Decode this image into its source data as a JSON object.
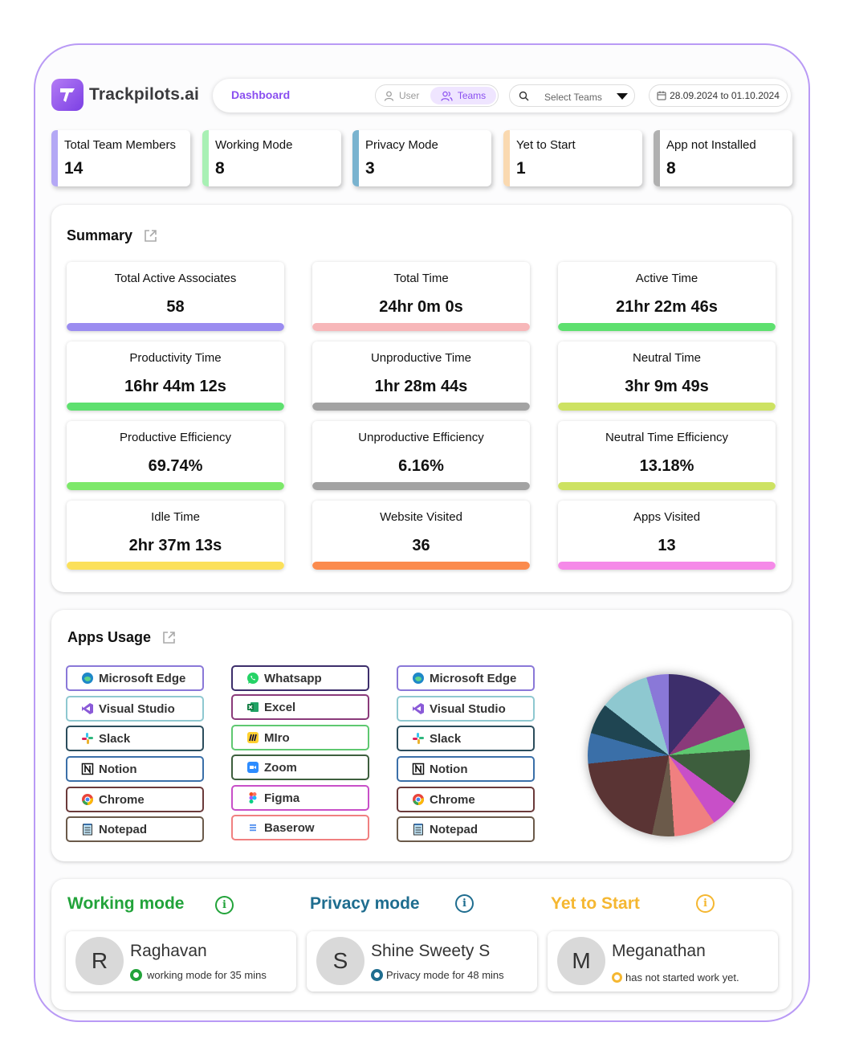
{
  "brand": {
    "name": "Trackpilots.ai",
    "accent": "#8a4ff0"
  },
  "header": {
    "title": "Dashboard",
    "toggle": {
      "user": "User",
      "teams": "Teams"
    },
    "team_select": {
      "placeholder": "Select Teams"
    },
    "date_range": "28.09.2024 to 01.10.2024"
  },
  "status_cards": [
    {
      "label": "Total Team Members",
      "value": "14",
      "color": "#b4a8f5"
    },
    {
      "label": "Working Mode",
      "value": "8",
      "color": "#a8f0b4"
    },
    {
      "label": "Privacy Mode",
      "value": "3",
      "color": "#7ab3cf"
    },
    {
      "label": "Yet to Start",
      "value": "1",
      "color": "#fad9b0"
    },
    {
      "label": "App not Installed",
      "value": "8",
      "color": "#b0b0b0"
    }
  ],
  "summary": {
    "title": "Summary",
    "metrics": [
      {
        "label": "Total Active Associates",
        "value": "58",
        "color": "#9b8cf0"
      },
      {
        "label": "Total Time",
        "value": "24hr 0m 0s",
        "color": "#f7b7b9"
      },
      {
        "label": "Active Time",
        "value": "21hr 22m 46s",
        "color": "#5ee06f"
      },
      {
        "label": "Productivity Time",
        "value": "16hr 44m 12s",
        "color": "#5ee06f"
      },
      {
        "label": "Unproductive Time",
        "value": "1hr 28m 44s",
        "color": "#a3a3a3"
      },
      {
        "label": "Neutral Time",
        "value": "3hr 9m 49s",
        "color": "#cde262"
      },
      {
        "label": "Productive Efficiency",
        "value": "69.74%",
        "color": "#7de86a"
      },
      {
        "label": "Unproductive Efficiency",
        "value": "6.16%",
        "color": "#a3a3a3"
      },
      {
        "label": "Neutral Time Efficiency",
        "value": "13.18%",
        "color": "#cde262"
      },
      {
        "label": "Idle Time",
        "value": "2hr 37m 13s",
        "color": "#fbe05a"
      },
      {
        "label": "Website Visited",
        "value": "36",
        "color": "#fb8b4d"
      },
      {
        "label": "Apps Visited",
        "value": "13",
        "color": "#f58ae8"
      }
    ]
  },
  "apps_usage": {
    "title": "Apps Usage",
    "columns": [
      [
        {
          "name": "Microsoft Edge",
          "icon": "edge-icon",
          "border": "#8a78d8"
        },
        {
          "name": "Visual Studio",
          "icon": "visual-studio-icon",
          "border": "#8ec8d0"
        },
        {
          "name": "Slack",
          "icon": "slack-icon",
          "border": "#2b4d5c"
        },
        {
          "name": "Notion",
          "icon": "notion-icon",
          "border": "#3a6fa8"
        },
        {
          "name": "Chrome",
          "icon": "chrome-icon",
          "border": "#6b3a3a"
        },
        {
          "name": "Notepad",
          "icon": "notepad-icon",
          "border": "#6b5a4a"
        }
      ],
      [
        {
          "name": "Whatsapp",
          "icon": "whatsapp-icon",
          "border": "#3d2e6b"
        },
        {
          "name": "Excel",
          "icon": "excel-icon",
          "border": "#8a3a7a"
        },
        {
          "name": "MIro",
          "icon": "miro-icon",
          "border": "#5ec870"
        },
        {
          "name": "Zoom",
          "icon": "zoom-icon",
          "border": "#3d5e3d"
        },
        {
          "name": "Figma",
          "icon": "figma-icon",
          "border": "#c84fc8"
        },
        {
          "name": "Baserow",
          "icon": "baserow-icon",
          "border": "#f08080"
        }
      ],
      [
        {
          "name": "Microsoft Edge",
          "icon": "edge-icon",
          "border": "#8a78d8"
        },
        {
          "name": "Visual Studio",
          "icon": "visual-studio-icon",
          "border": "#8ec8d0"
        },
        {
          "name": "Slack",
          "icon": "slack-icon",
          "border": "#2b4d5c"
        },
        {
          "name": "Notion",
          "icon": "notion-icon",
          "border": "#3a6fa8"
        },
        {
          "name": "Chrome",
          "icon": "chrome-icon",
          "border": "#6b3a3a"
        },
        {
          "name": "Notepad",
          "icon": "notepad-icon",
          "border": "#6b5a4a"
        }
      ]
    ],
    "pie_colors": [
      "#3d2e6b",
      "#8a3a7a",
      "#5ec870",
      "#3d5e3d",
      "#c84fc8",
      "#f08080",
      "#6b5a4a",
      "#5a3434",
      "#3a6fa8",
      "#1f4552",
      "#8ec8d0",
      "#8a78d8"
    ]
  },
  "modes": {
    "working": {
      "title": "Working mode",
      "color": "#22a33a",
      "user": {
        "initial": "R",
        "name": "Raghavan",
        "status": "working mode for 35 mins"
      }
    },
    "privacy": {
      "title": "Privacy mode",
      "color": "#1f6d8f",
      "user": {
        "initial": "S",
        "name": "Shine Sweety S",
        "status": "Privacy mode for 48 mins"
      }
    },
    "yet": {
      "title": "Yet to Start",
      "color": "#f5b731",
      "user": {
        "initial": "M",
        "name": "Meganathan",
        "status": "has not started work yet."
      }
    }
  }
}
